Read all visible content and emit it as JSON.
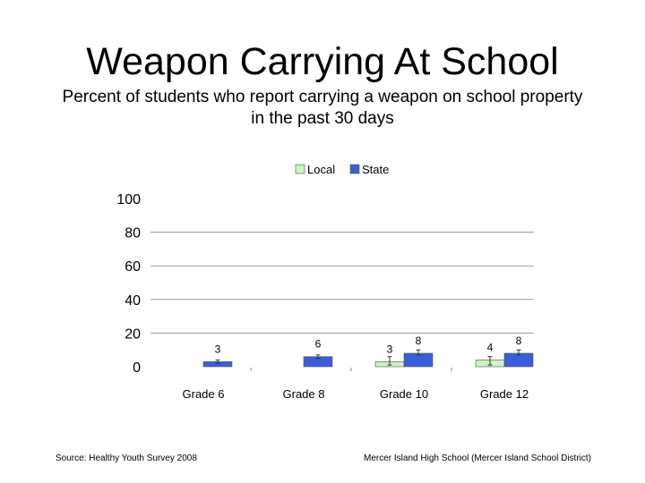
{
  "slide": {
    "title": "Weapon Carrying At School",
    "subtitle": "Percent of students who report carrying a weapon on school property in the past 30 days"
  },
  "footer": {
    "source": "Source: Healthy Youth Survey 2008",
    "school": "Mercer Island High School (Mercer Island School District)"
  },
  "chart_data": {
    "type": "bar",
    "categories": [
      "Grade 6",
      "Grade 8",
      "Grade 10",
      "Grade 12"
    ],
    "series": [
      {
        "name": "Local",
        "color": "#ccf2c2",
        "values": [
          null,
          null,
          3,
          4
        ],
        "labels": [
          "",
          "",
          "3",
          "4"
        ]
      },
      {
        "name": "State",
        "color": "#3b5ed8",
        "values": [
          3,
          6,
          8,
          8
        ],
        "labels": [
          "3",
          "6",
          "8",
          "8"
        ]
      }
    ],
    "error_bars": {
      "Local": [
        null,
        null,
        [
          1,
          6
        ],
        [
          1,
          6
        ]
      ],
      "State": [
        [
          2,
          4
        ],
        [
          5,
          7
        ],
        [
          7,
          10
        ],
        [
          7,
          10
        ]
      ]
    },
    "yticks": [
      0,
      20,
      40,
      60,
      80,
      100
    ],
    "ylim": [
      0,
      100
    ],
    "grid": true,
    "legend": "top"
  }
}
